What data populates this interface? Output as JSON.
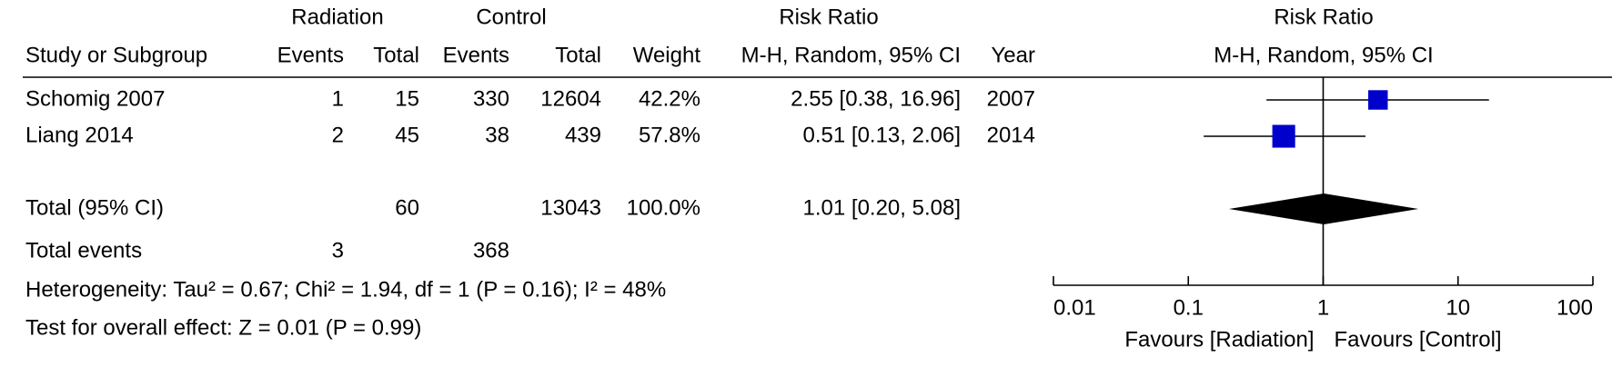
{
  "table": {
    "group_headers": [
      "Radiation",
      "Control",
      "Risk Ratio"
    ],
    "columns": [
      "Study or Subgroup",
      "Events",
      "Total",
      "Events",
      "Total",
      "Weight",
      "M-H, Random, 95% CI",
      "Year"
    ],
    "rows": [
      [
        "Schomig 2007",
        1,
        15,
        330,
        12604,
        "42.2%",
        "2.55 [0.38, 16.96]",
        2007
      ],
      [
        "Liang 2014",
        2,
        45,
        38,
        439,
        "57.8%",
        "0.51 [0.13, 2.06]",
        2014
      ]
    ],
    "total": [
      "Total (95% CI)",
      60,
      13043,
      "100.0%",
      "1.01 [0.20, 5.08]"
    ],
    "total_events": [
      "Total events",
      3,
      368
    ],
    "heterogeneity": "Heterogeneity: Tau² = 0.67; Chi² = 1.94, df = 1 (P = 0.16); I² = 48%",
    "overall_effect": "Test for overall effect: Z = 0.01 (P = 0.99)"
  },
  "chart_data": {
    "type": "forest",
    "title": "Risk Ratio",
    "subtitle": "M-H, Random, 95% CI",
    "estimates": [
      2.55,
      0.51
    ],
    "lower": [
      0.38,
      0.13
    ],
    "upper": [
      16.96,
      2.06
    ],
    "weights": [
      42.2,
      57.8
    ],
    "total": {
      "estimate": 1.01,
      "lower": 0.2,
      "upper": 5.08
    },
    "xlim": [
      0.01,
      100
    ],
    "xticks": [
      0.01,
      0.1,
      1,
      10,
      100
    ],
    "log_scale": true,
    "color": "#0000cc",
    "favours_left": "Favours [Radiation]",
    "favours_right": "Favours [Control]"
  }
}
